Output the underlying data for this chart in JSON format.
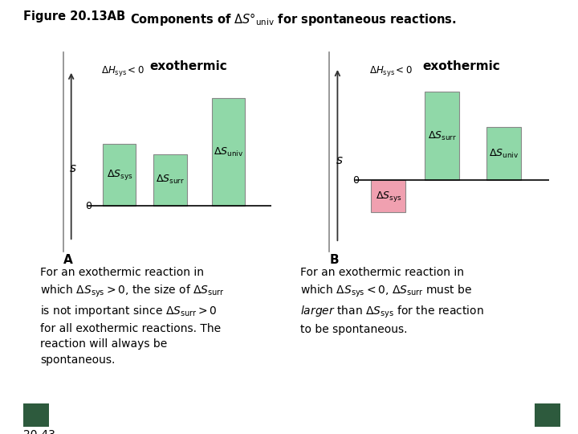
{
  "bg_color": "#ffffff",
  "green_color": "#90d8a8",
  "pink_color": "#f0a0b0",
  "dark_green": "#2d5a3d",
  "panel_A": {
    "label": "A",
    "bars": [
      {
        "sub": "sys",
        "value": 0.3,
        "color": "#90d8a8"
      },
      {
        "sub": "surr",
        "value": 0.25,
        "color": "#90d8a8"
      },
      {
        "sub": "univ",
        "value": 0.52,
        "color": "#90d8a8"
      }
    ]
  },
  "panel_B": {
    "label": "B",
    "bars": [
      {
        "sub": "sys",
        "value": -0.18,
        "color": "#f0a0b0"
      },
      {
        "sub": "surr",
        "value": 0.5,
        "color": "#90d8a8"
      },
      {
        "sub": "univ",
        "value": 0.3,
        "color": "#90d8a8"
      }
    ]
  }
}
